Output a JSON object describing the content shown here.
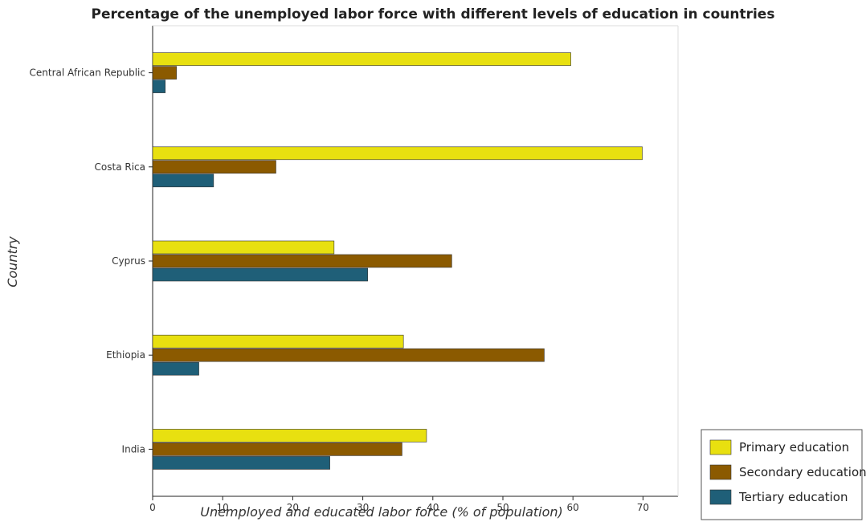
{
  "chart_data": {
    "type": "bar",
    "orientation": "horizontal",
    "title": "Percentage of the unemployed labor force with different levels of education in countries",
    "xlabel": "Unemployed and educated labor force (% of population)",
    "ylabel": "Country",
    "xlim": [
      0,
      75
    ],
    "xticks": [
      0,
      10,
      20,
      30,
      40,
      50,
      60,
      70
    ],
    "categories": [
      "Central African Republic",
      "Costa Rica",
      "Cyprus",
      "Ethiopia",
      "India"
    ],
    "series": [
      {
        "name": "Primary education",
        "color": "#e8e010",
        "values": [
          59.7,
          69.9,
          25.9,
          35.8,
          39.1
        ]
      },
      {
        "name": "Secondary education",
        "color": "#8b5a00",
        "values": [
          3.4,
          17.6,
          42.7,
          55.9,
          35.6
        ]
      },
      {
        "name": "Tertiary education",
        "color": "#1f5f78",
        "values": [
          1.8,
          8.7,
          30.7,
          6.6,
          25.3
        ]
      }
    ],
    "legend_position": "bottom-right",
    "grid": false
  }
}
